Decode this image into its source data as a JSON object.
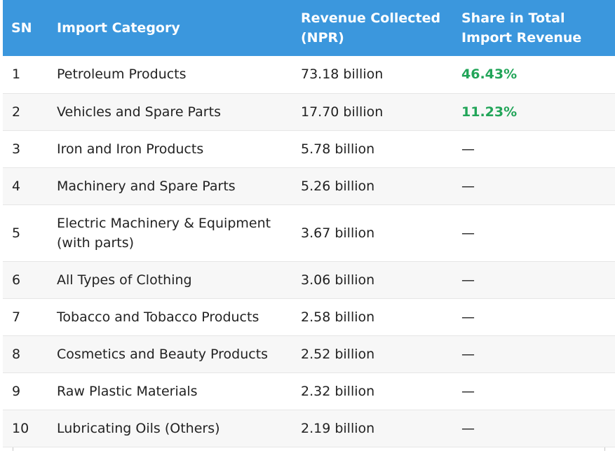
{
  "table": {
    "headers": {
      "sn": "SN",
      "category": "Import Category",
      "revenue": "Revenue Collected (NPR)",
      "share": "Share in Total Import Revenue"
    },
    "rows": [
      {
        "sn": "1",
        "category": "Petroleum Products",
        "revenue": "73.18 billion",
        "share": "46.43%"
      },
      {
        "sn": "2",
        "category": "Vehicles and Spare Parts",
        "revenue": "17.70 billion",
        "share": "11.23%"
      },
      {
        "sn": "3",
        "category": "Iron and Iron Products",
        "revenue": "5.78 billion",
        "share": "—"
      },
      {
        "sn": "4",
        "category": "Machinery and Spare Parts",
        "revenue": "5.26 billion",
        "share": "—"
      },
      {
        "sn": "5",
        "category": "Electric Machinery & Equipment (with parts)",
        "revenue": "3.67 billion",
        "share": "—"
      },
      {
        "sn": "6",
        "category": "All Types of Clothing",
        "revenue": "3.06 billion",
        "share": "—"
      },
      {
        "sn": "7",
        "category": "Tobacco and Tobacco Products",
        "revenue": "2.58 billion",
        "share": "—"
      },
      {
        "sn": "8",
        "category": "Cosmetics and Beauty Products",
        "revenue": "2.52 billion",
        "share": "—"
      },
      {
        "sn": "9",
        "category": "Raw Plastic Materials",
        "revenue": "2.32 billion",
        "share": "—"
      },
      {
        "sn": "10",
        "category": "Lubricating Oils (Others)",
        "revenue": "2.19 billion",
        "share": "—"
      }
    ]
  },
  "colors": {
    "header_bg": "#3b97dd",
    "highlight_green": "#22a559"
  }
}
